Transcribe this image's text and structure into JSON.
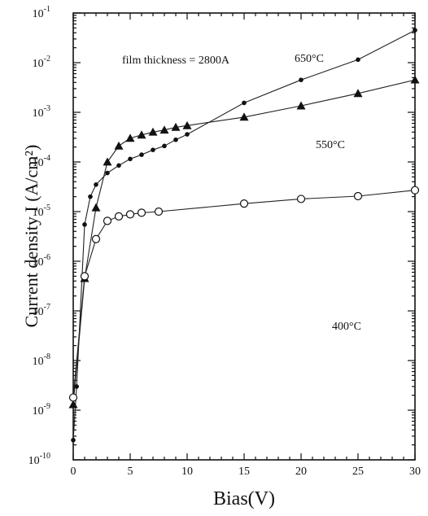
{
  "chart_data": {
    "type": "line",
    "title": "",
    "annotation": "film thickness = 2800A",
    "xlabel": "Bias(V)",
    "ylabel": "Current density  I (A/cm²)",
    "xlim": [
      0,
      30
    ],
    "ylim_exponent": [
      -10,
      -1
    ],
    "yscale": "log",
    "grid": false,
    "x_ticks": [
      "0",
      "5",
      "10",
      "15",
      "20",
      "25",
      "30"
    ],
    "y_ticks": [
      {
        "base": "10",
        "exp": "-10"
      },
      {
        "base": "10",
        "exp": "-9"
      },
      {
        "base": "10",
        "exp": "-8"
      },
      {
        "base": "10",
        "exp": "-7"
      },
      {
        "base": "10",
        "exp": "-6"
      },
      {
        "base": "10",
        "exp": "-5"
      },
      {
        "base": "10",
        "exp": "-4"
      },
      {
        "base": "10",
        "exp": "-3"
      },
      {
        "base": "10",
        "exp": "-2"
      },
      {
        "base": "10",
        "exp": "-1"
      }
    ],
    "series": [
      {
        "name": "650°C",
        "marker": "filled-circle",
        "x": [
          0,
          0.3,
          1,
          1.5,
          2,
          3,
          4,
          5,
          6,
          7,
          8,
          9,
          10,
          15,
          20,
          25,
          30
        ],
        "y": [
          2.5e-10,
          3e-09,
          5.5e-06,
          2e-05,
          3.5e-05,
          6e-05,
          8.5e-05,
          0.000115,
          0.00014,
          0.000175,
          0.00021,
          0.00028,
          0.00036,
          0.00155,
          0.0045,
          0.0115,
          0.045
        ]
      },
      {
        "name": "550°C",
        "marker": "filled-triangle",
        "x": [
          0,
          1,
          2,
          3,
          4,
          5,
          6,
          7,
          8,
          9,
          10,
          15,
          20,
          25,
          30
        ],
        "y": [
          1.3e-09,
          4.5e-07,
          1.2e-05,
          0.0001,
          0.00021,
          0.0003,
          0.00035,
          0.0004,
          0.00044,
          0.0005,
          0.00054,
          0.0008,
          0.00135,
          0.0024,
          0.0045
        ]
      },
      {
        "name": "400°C",
        "marker": "open-circle",
        "x": [
          0,
          1,
          2,
          3,
          4,
          5,
          6,
          7.5,
          15,
          20,
          25,
          30
        ],
        "y": [
          1.8e-09,
          5e-07,
          2.8e-06,
          6.5e-06,
          8e-06,
          8.8e-06,
          9.5e-06,
          1e-05,
          1.45e-05,
          1.8e-05,
          2.05e-05,
          2.7e-05
        ]
      }
    ],
    "series_labels": [
      {
        "text": "650°C",
        "x": 10.2,
        "y": 0.022
      },
      {
        "text": "550°C",
        "x": 12.0,
        "y": 0.0004
      },
      {
        "text": "400°C",
        "x": 11.0,
        "y": 3.5e-06
      }
    ],
    "annotation_pos": {
      "x": 1.3,
      "y": 0.022
    }
  }
}
